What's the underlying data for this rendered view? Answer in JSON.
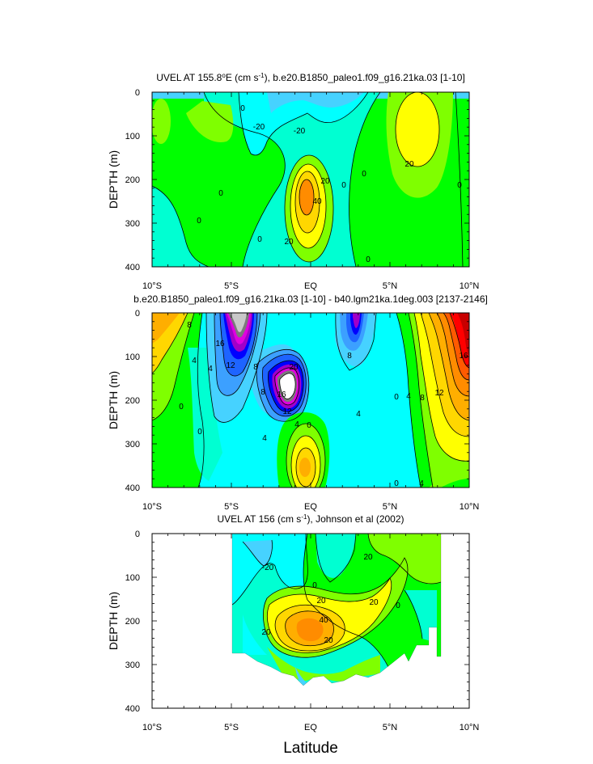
{
  "figure": {
    "xlabel": "Latitude",
    "colors": {
      "lightgray": "#c8c8c8",
      "gray": "#7a7a7a",
      "white": "#ffffff",
      "purple": "#a000c8",
      "magenta": "#e000e0",
      "blue": "#0000ff",
      "royal": "#1e64ff",
      "sky": "#3ca0ff",
      "lightsky": "#46d2ff",
      "cyan": "#00ffff",
      "aqua": "#00ffd2",
      "teal": "#00e5a6",
      "green": "#00ff00",
      "lime": "#7fff00",
      "yellow": "#ffff00",
      "gold": "#ffd700",
      "amber": "#ffae00",
      "orange": "#ff8c00",
      "darkorange": "#ff5a00",
      "red": "#ff0000",
      "darkred": "#c80000"
    }
  },
  "chart_data": [
    {
      "type": "contour",
      "title": "UVEL AT 155.8°E (cm s-1), b.e20.B1850_paleo1.f09_g16.21ka.03 [1-10]",
      "title_parts": {
        "main": "UVEL AT 155.8",
        "deg": "o",
        "tail": "E (cm s",
        "exp": "-1",
        "rest": "), b.e20.B1850_paleo1.f09_g16.21ka.03 [1-10]"
      },
      "ylabel": "DEPTH (m)",
      "xlim": [
        -10,
        10
      ],
      "ylim": [
        400,
        0
      ],
      "xticks": [
        "10°S",
        "5°S",
        "EQ",
        "5°N",
        "10°N"
      ],
      "yticks": [
        "0",
        "100",
        "200",
        "300",
        "400"
      ],
      "contour_labels": [
        "0",
        "-20",
        "-20",
        "0",
        "0",
        "20",
        "40",
        "20",
        "0",
        "0",
        "0",
        "20",
        "0",
        "0"
      ],
      "notes": "Eastward undercurrent core near EQ at ~240 m (>40 cm/s); eastward jet near 6°N at ~100 m (>20 cm/s)."
    },
    {
      "type": "contour",
      "title": "b.e20.B1850_paleo1.f09_g16.21ka.03 [1-10] - b40.lgm21ka.1deg.003 [2137-2146]",
      "ylabel": "DEPTH (m)",
      "xlim": [
        -10,
        10
      ],
      "ylim": [
        400,
        0
      ],
      "xticks": [
        "10°S",
        "5°S",
        "EQ",
        "5°N",
        "10°N"
      ],
      "yticks": [
        "0",
        "100",
        "200",
        "300",
        "400"
      ],
      "contour_labels": [
        "8",
        "4",
        "0",
        "0",
        "16",
        "12",
        "4",
        "8",
        "20",
        "16",
        "12",
        "8",
        "4",
        "0",
        "4",
        "8",
        "0",
        "4",
        "8",
        "12",
        "16",
        "4",
        "4",
        "0"
      ],
      "notes": "Difference field: strong negative core near 1°S at ~170 m (< -20), positive maximum near 9°N at ~80 m (>16)."
    },
    {
      "type": "contour",
      "title": "UVEL AT 156 (cm s-1), Johnson et al (2002)",
      "title_parts": {
        "main": "UVEL AT 156 (cm s",
        "exp": "-1",
        "rest": "), Johnson et al (2002)"
      },
      "ylabel": "DEPTH (m)",
      "xlim": [
        -10,
        10
      ],
      "ylim": [
        400,
        0
      ],
      "xticks": [
        "10°S",
        "5°S",
        "EQ",
        "5°N",
        "10°N"
      ],
      "yticks": [
        "0",
        "100",
        "200",
        "300",
        "400"
      ],
      "contour_labels": [
        "-20",
        "0",
        "20",
        "20",
        "20",
        "40",
        "20",
        "20",
        "0"
      ],
      "notes": "Observations cover ~5°S to ~8°N; undercurrent core near EQ at ~190 m (>40 cm/s)."
    }
  ]
}
